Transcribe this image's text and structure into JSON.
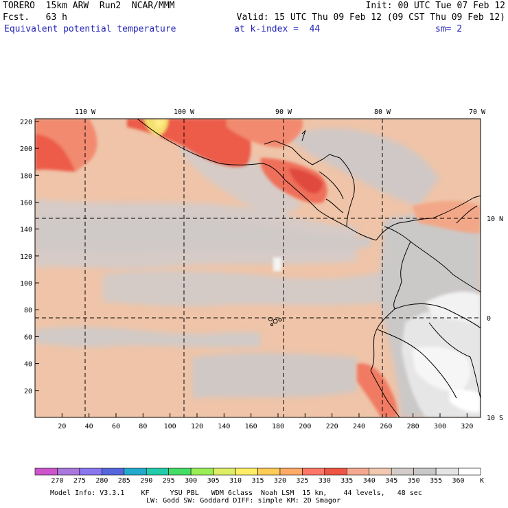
{
  "header": {
    "model": "TORERO",
    "resolution": "15km ARW",
    "run": "Run2",
    "center": "NCAR/MMM",
    "init": "Init: 00 UTC Tue 07 Feb 12",
    "fcst_label": "Fcst.",
    "fcst_hours": "63 h",
    "valid": "Valid: 15 UTC Thu 09 Feb 12 (09 CST Thu 09 Feb 12)",
    "field": "Equivalent potential temperature",
    "level": "at k-index =  44",
    "smoothing": "sm= 2"
  },
  "map": {
    "longitude_labels": [
      "110 W",
      "100 W",
      "90 W",
      "80 W",
      "70 W"
    ],
    "latitude_labels": [
      "10 N",
      "0",
      "10 S"
    ],
    "x_ticks": [
      "20",
      "40",
      "60",
      "80",
      "100",
      "120",
      "140",
      "160",
      "180",
      "200",
      "220",
      "240",
      "260",
      "280",
      "300",
      "320"
    ],
    "y_ticks": [
      "220",
      "200",
      "180",
      "160",
      "140",
      "120",
      "100",
      "80",
      "60",
      "40",
      "20"
    ]
  },
  "legend": {
    "unit": "K",
    "levels": [
      "270",
      "275",
      "280",
      "285",
      "290",
      "295",
      "300",
      "305",
      "310",
      "315",
      "320",
      "325",
      "330",
      "335",
      "340",
      "345",
      "350",
      "355",
      "360"
    ],
    "colors": [
      "#cc55cc",
      "#aa77dd",
      "#8877ee",
      "#5566dd",
      "#22aacc",
      "#22ccaa",
      "#44dd66",
      "#99ee55",
      "#ddee66",
      "#ffee66",
      "#ffcc55",
      "#ffaa66",
      "#ff7766",
      "#ee5544",
      "#f4a890",
      "#f2c8b0",
      "#d4ccc8",
      "#c8c8c8",
      "#e4e4e4",
      "#ffffff"
    ]
  },
  "footer": {
    "line1": "Model Info: V3.3.1    KF     YSU PBL   WDM 6class  Noah LSM  15 km,    44 levels,   48 sec",
    "line2": "LW: Godd SW: Goddard DIFF: simple KM: 2D Smagor"
  }
}
